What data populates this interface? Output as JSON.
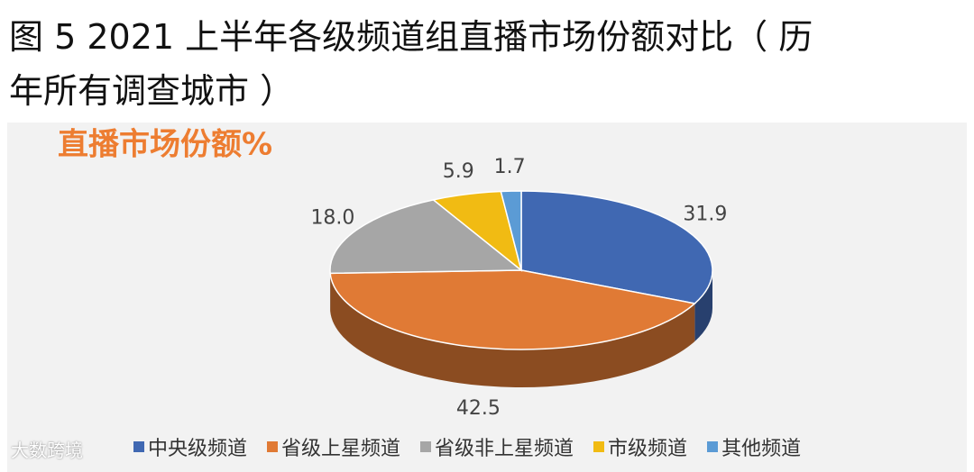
{
  "figure_title": [
    "图 5 2021 上半年各级频道组直播市场份额对比（ 历",
    "年所有调查城市 ）"
  ],
  "watermark": "大数跨境",
  "chart_data": {
    "type": "pie",
    "title": "直播市场份额%",
    "categories": [
      "中央级频道",
      "省级上星频道",
      "省级非上星频道",
      "市级频道",
      "其他频道"
    ],
    "values": [
      31.9,
      42.5,
      18.0,
      5.9,
      1.7
    ],
    "value_labels": [
      "31.9",
      "42.5",
      "18.0",
      "5.9",
      "1.7"
    ],
    "colors": [
      "#4068b2",
      "#e07a35",
      "#a6a6a6",
      "#f1bb13",
      "#5b9bd5"
    ]
  }
}
